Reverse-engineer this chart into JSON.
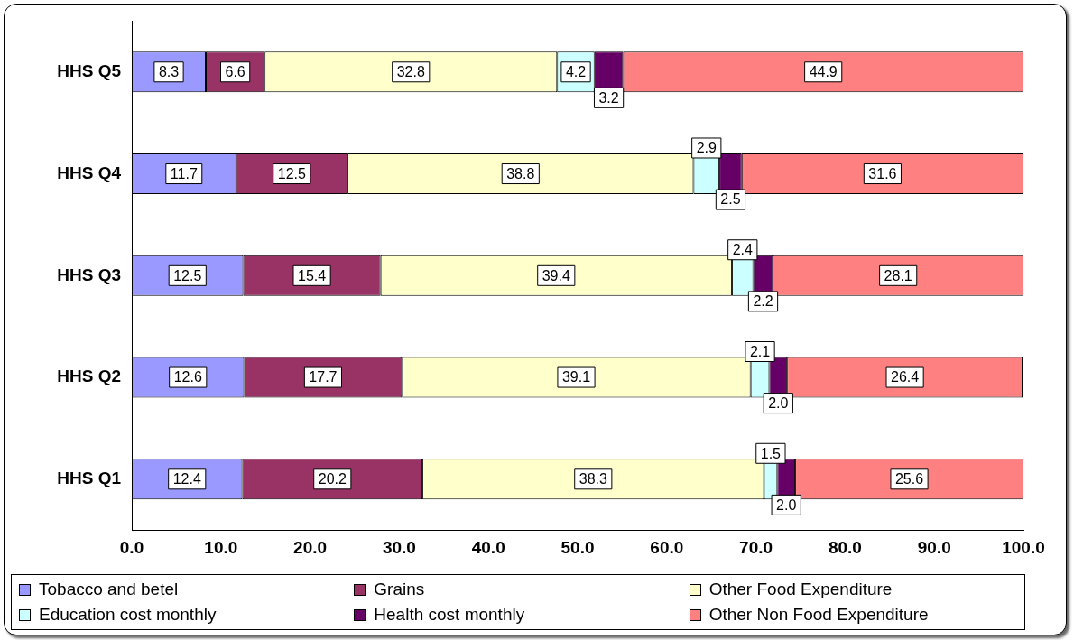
{
  "chart_data": {
    "type": "bar",
    "orientation": "horizontal",
    "stacked": true,
    "categories": [
      "HHS Q5",
      "HHS Q4",
      "HHS Q3",
      "HHS Q2",
      "HHS Q1"
    ],
    "series": [
      {
        "name": "Tobacco and betel",
        "color": "#9999ff",
        "values": [
          8.3,
          11.7,
          12.5,
          12.6,
          12.4
        ],
        "value_labels": [
          "8.3",
          "11.7",
          "12.5",
          "12.6",
          "12.4"
        ]
      },
      {
        "name": "Grains",
        "color": "#993366",
        "values": [
          6.6,
          12.5,
          15.4,
          17.7,
          20.2
        ],
        "value_labels": [
          "6.6",
          "12.5",
          "15.4",
          "17.7",
          "20.2"
        ]
      },
      {
        "name": "Other Food Expenditure",
        "color": "#ffffcc",
        "values": [
          32.8,
          38.8,
          39.4,
          39.1,
          38.3
        ],
        "value_labels": [
          "32.8",
          "38.8",
          "39.4",
          "39.1",
          "38.3"
        ]
      },
      {
        "name": "Education cost monthly",
        "color": "#ccffff",
        "values": [
          4.2,
          2.9,
          2.4,
          2.1,
          1.5
        ],
        "value_labels": [
          "4.2",
          "2.9",
          "2.4",
          "2.1",
          "1.5"
        ]
      },
      {
        "name": "Health cost monthly",
        "color": "#660066",
        "values": [
          3.2,
          2.5,
          2.2,
          2.0,
          2.0
        ],
        "value_labels": [
          "3.2",
          "2.5",
          "2.2",
          "2.0",
          "2.0"
        ]
      },
      {
        "name": "Other Non Food Expenditure",
        "color": "#ff8080",
        "values": [
          44.9,
          31.6,
          28.1,
          26.4,
          25.6
        ],
        "value_labels": [
          "44.9",
          "31.6",
          "28.1",
          "26.4",
          "25.6"
        ]
      }
    ],
    "xlim": [
      0,
      100
    ],
    "xticks": [
      {
        "value": 0,
        "label": "0.0"
      },
      {
        "value": 10,
        "label": "10.0"
      },
      {
        "value": 20,
        "label": "20.0"
      },
      {
        "value": 30,
        "label": "30.0"
      },
      {
        "value": 40,
        "label": "40.0"
      },
      {
        "value": 50,
        "label": "50.0"
      },
      {
        "value": 60,
        "label": "60.0"
      },
      {
        "value": 70,
        "label": "70.0"
      },
      {
        "value": 80,
        "label": "80.0"
      },
      {
        "value": 90,
        "label": "90.0"
      },
      {
        "value": 100,
        "label": "100.0"
      }
    ],
    "grid": false,
    "legend": "bottom"
  }
}
